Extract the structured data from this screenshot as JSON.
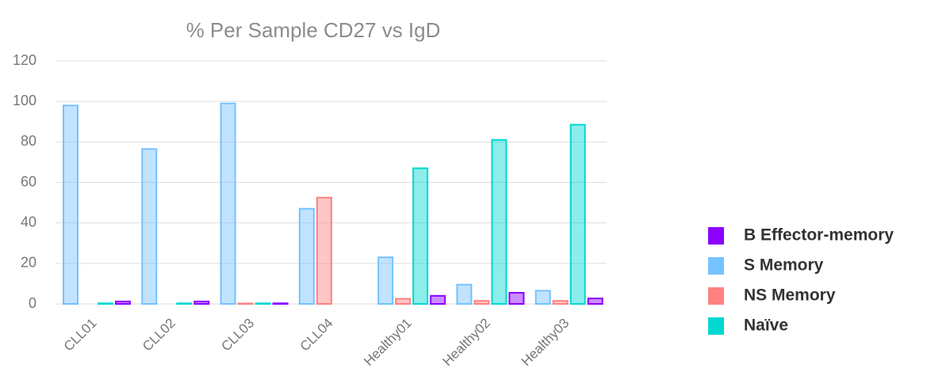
{
  "chart_data": {
    "type": "bar",
    "title": "% Per Sample CD27 vs IgD",
    "categories": [
      "CLL01",
      "CLL02",
      "CLL03",
      "CLL04",
      "Healthy01",
      "Healthy02",
      "Healthy03"
    ],
    "series": [
      {
        "name": "S Memory",
        "color": "#75c2ff",
        "values": [
          98,
          76.5,
          99,
          47,
          23,
          9.5,
          6.5
        ]
      },
      {
        "name": "NS Memory",
        "color": "#ff8080",
        "values": [
          0,
          0,
          0.2,
          52.5,
          2.5,
          1.5,
          1.5
        ]
      },
      {
        "name": "Naïve",
        "color": "#00d8d0",
        "values": [
          0.3,
          0.3,
          0.3,
          0,
          67,
          81,
          88.5
        ]
      },
      {
        "name": "B Effector-memory",
        "color": "#8b00ff",
        "values": [
          1.2,
          1.2,
          0.3,
          0,
          4,
          5.5,
          2.7
        ]
      }
    ],
    "ylim": [
      0,
      120
    ],
    "yticks": [
      0,
      20,
      40,
      60,
      80,
      100,
      120
    ],
    "grid": true,
    "legend": "right"
  }
}
